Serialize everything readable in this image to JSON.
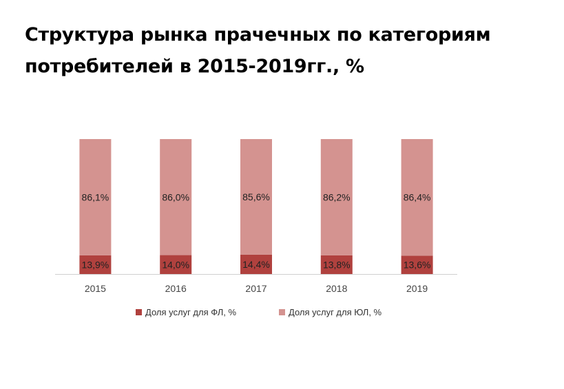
{
  "chart_data": {
    "type": "bar",
    "stacked": true,
    "title": "Структура рынка прачечных по категориям потребителей в 2015-2019гг., %",
    "categories": [
      "2015",
      "2016",
      "2017",
      "2018",
      "2019"
    ],
    "series": [
      {
        "name": "Доля услуг для ФЛ, %",
        "values": [
          13.9,
          14.0,
          14.4,
          13.8,
          13.6
        ],
        "labels": [
          "13,9%",
          "14,0%",
          "14,4%",
          "13,8%",
          "13,6%"
        ],
        "color": "#b0413e"
      },
      {
        "name": "Доля услуг для ЮЛ, %",
        "values": [
          86.1,
          86.0,
          85.6,
          86.2,
          86.4
        ],
        "labels": [
          "86,1%",
          "86,0%",
          "85,6%",
          "86,2%",
          "86,4%"
        ],
        "color": "#d49390"
      }
    ],
    "ylim": [
      0,
      100
    ],
    "grid": false,
    "legend": "bottom",
    "axis_color": "#cfcfcf"
  }
}
